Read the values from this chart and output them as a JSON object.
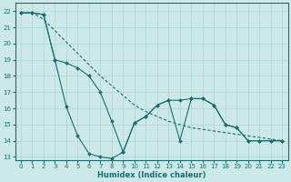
{
  "title": "",
  "xlabel": "Humidex (Indice chaleur)",
  "background_color": "#cce8e8",
  "grid_color": "#aacccc",
  "line_color": "#1a6e6e",
  "xlim": [
    -0.5,
    23.5
  ],
  "ylim": [
    12.8,
    22.5
  ],
  "yticks": [
    13,
    14,
    15,
    16,
    17,
    18,
    19,
    20,
    21,
    22
  ],
  "xticks": [
    0,
    1,
    2,
    3,
    4,
    5,
    6,
    7,
    8,
    9,
    10,
    11,
    12,
    13,
    14,
    15,
    16,
    17,
    18,
    19,
    20,
    21,
    22,
    23
  ],
  "line1_x": [
    0,
    1,
    2,
    3,
    4,
    5,
    6,
    7,
    8,
    9,
    10,
    11,
    12,
    13,
    14,
    15,
    16,
    17,
    18,
    19,
    20,
    21,
    22,
    23
  ],
  "line1_y": [
    21.9,
    21.9,
    21.8,
    19.0,
    16.1,
    14.3,
    13.2,
    13.0,
    12.9,
    13.3,
    15.1,
    15.5,
    16.2,
    16.5,
    14.0,
    16.6,
    16.6,
    16.2,
    15.0,
    14.8,
    14.0,
    14.0,
    14.0,
    14.0
  ],
  "line2_x": [
    0,
    1,
    2,
    3,
    4,
    5,
    6,
    7,
    8,
    9,
    10,
    11,
    12,
    13,
    14,
    15,
    16,
    17,
    18,
    19,
    20,
    21,
    22,
    23
  ],
  "line2_y": [
    21.9,
    21.9,
    21.5,
    20.8,
    20.1,
    19.4,
    18.7,
    18.0,
    17.4,
    16.8,
    16.2,
    15.8,
    15.5,
    15.2,
    15.0,
    14.8,
    14.7,
    14.6,
    14.5,
    14.4,
    14.3,
    14.2,
    14.1,
    14.0
  ],
  "line3_x": [
    0,
    1,
    2,
    3,
    4,
    5,
    6,
    7,
    8,
    9,
    10,
    11,
    12,
    13,
    14,
    15,
    16,
    17,
    18,
    19,
    20,
    21,
    22,
    23
  ],
  "line3_y": [
    21.9,
    21.9,
    21.8,
    19.0,
    18.8,
    18.5,
    18.0,
    17.0,
    15.2,
    13.3,
    15.1,
    15.5,
    16.2,
    16.5,
    16.5,
    16.6,
    16.6,
    16.2,
    15.0,
    14.8,
    14.0,
    14.0,
    14.0,
    14.0
  ]
}
